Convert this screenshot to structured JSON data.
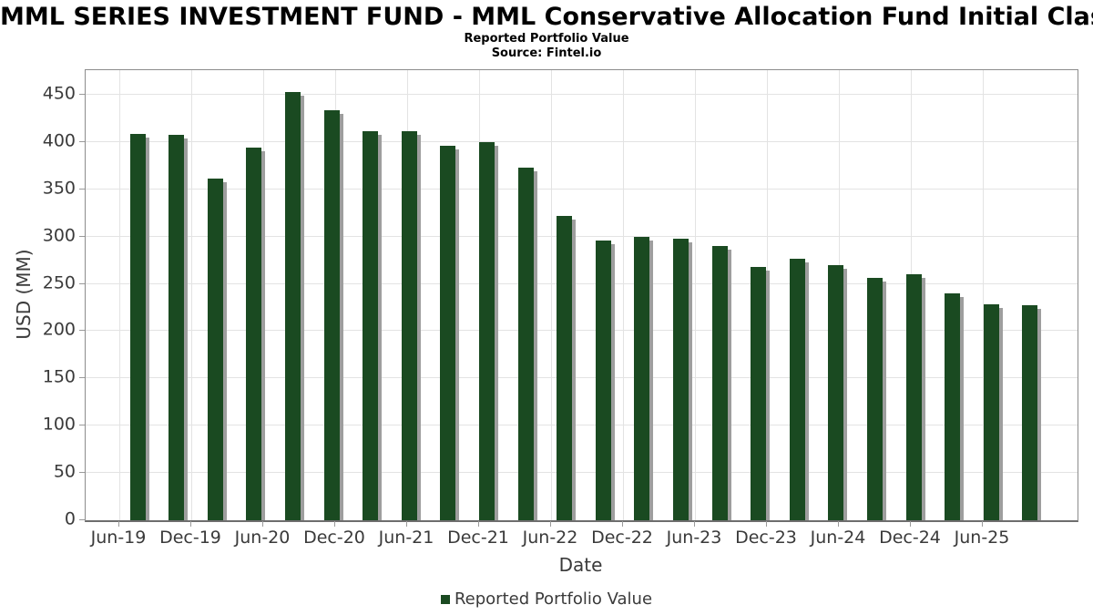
{
  "header": {
    "title": "MML SERIES INVESTMENT FUND - MML Conservative Allocation Fund Initial Class",
    "subtitle": "Reported Portfolio Value",
    "source": "Source: Fintel.io"
  },
  "chart_data": {
    "type": "bar",
    "title": "MML SERIES INVESTMENT FUND - MML Conservative Allocation Fund Initial Class",
    "subtitle": "Reported Portfolio Value",
    "source": "Source: Fintel.io",
    "categories": [
      "Jun-19",
      "Sep-19",
      "Dec-19",
      "Mar-20",
      "Jun-20",
      "Sep-20",
      "Dec-20",
      "Mar-21",
      "Jun-21",
      "Sep-21",
      "Dec-21",
      "Mar-22",
      "Jun-22",
      "Sep-22",
      "Dec-22",
      "Mar-23",
      "Jun-23",
      "Sep-23",
      "Dec-23",
      "Mar-24",
      "Jun-24",
      "Sep-24",
      "Dec-24",
      "Mar-25"
    ],
    "values": [
      409,
      408,
      361,
      394,
      453,
      434,
      411,
      411,
      396,
      400,
      373,
      322,
      296,
      300,
      298,
      290,
      268,
      277,
      270,
      256,
      260,
      240,
      228,
      227
    ],
    "xlabel": "Date",
    "ylabel": "USD (MM)",
    "ylim": [
      0,
      476
    ],
    "yticks": [
      0,
      50,
      100,
      150,
      200,
      250,
      300,
      350,
      400,
      450
    ],
    "xtick_labels": [
      "Jun-19",
      "Dec-19",
      "Jun-20",
      "Dec-20",
      "Jun-21",
      "Dec-21",
      "Jun-22",
      "Dec-22",
      "Jun-23",
      "Dec-23",
      "Jun-24",
      "Dec-24",
      "Jun-25"
    ],
    "grid": true,
    "legend": {
      "position": "bottom",
      "entries": [
        "Reported Portfolio Value"
      ]
    },
    "bar_color": "#1a4a21",
    "shadow_color": "#9e9e9e",
    "gridline_color": "#e3e3e3"
  }
}
